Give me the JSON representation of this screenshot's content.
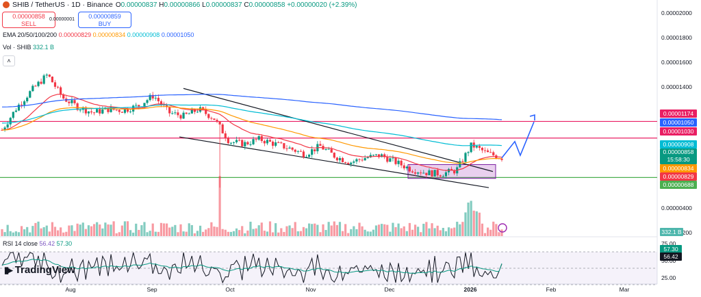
{
  "header": {
    "symbol": "SHIB / TetherUS · 1D · Binance",
    "o_label": "O",
    "o": "0.00000837",
    "h_label": "H",
    "h": "0.00000866",
    "l_label": "L",
    "l": "0.00000837",
    "c_label": "C",
    "c": "0.00000858",
    "change": "+0.00000020 (+2.39%)"
  },
  "trade": {
    "sell_price": "0.00000858",
    "sell_label": "SELL",
    "buy_price": "0.00000859",
    "buy_label": "BUY",
    "spread": "0.00000001"
  },
  "ema": {
    "label": "EMA 20/50/100/200",
    "v20": "0.00000829",
    "v50": "0.00000834",
    "v100": "0.00000908",
    "v200": "0.00001050"
  },
  "volume": {
    "label": "Vol · SHIB",
    "value": "332.1 B"
  },
  "rsi": {
    "label": "RSI 14 close",
    "value": "56.42",
    "ma": "57.30"
  },
  "logo": "TradingView",
  "colors": {
    "up": "#089981",
    "down": "#f23645",
    "ema20": "#f23645",
    "ema50": "#ff9800",
    "ema100": "#00bcd4",
    "ema200": "#2962ff",
    "resistance": "#e91e63",
    "support": "#4caf50",
    "projection": "#2962ff"
  },
  "price_axis": {
    "ticks": [
      "0.00002000",
      "0.00001800",
      "0.00001600",
      "0.00001400",
      "0.00001200",
      "0.00000400",
      "0.00000200"
    ],
    "labels": {
      "r1": "0.00001174",
      "ema200": "0.00001050",
      "r2": "0.00001030",
      "ema100": "0.00000908",
      "last": "0.00000858",
      "countdown": "15:58:30",
      "ema50": "0.00000834",
      "ema20": "0.00000829",
      "support": "0.00000688",
      "vol": "332.1 B"
    }
  },
  "rsi_axis": {
    "ticks": [
      "75.00",
      "25.00"
    ],
    "ma_label": "57.30",
    "value_label": "56.42",
    "mid_label": "50.00"
  },
  "time_axis": [
    "Aug",
    "Sep",
    "Oct",
    "Nov",
    "Dec",
    "2026",
    "Feb",
    "Mar"
  ],
  "chart_data": {
    "type": "candlestick",
    "title": "SHIB / TetherUS · 1D · Binance",
    "y_range": [
      1.8e-06,
      2.12e-05
    ],
    "x_labels": [
      "Aug",
      "Sep",
      "Oct",
      "Nov",
      "Dec",
      "2026",
      "Feb",
      "Mar"
    ],
    "ema20_current": 8.29e-06,
    "ema50_current": 8.34e-06,
    "ema100_current": 9.08e-06,
    "ema200_current": 1.05e-05,
    "horizontal_levels": [
      {
        "name": "resistance-1",
        "value": 1.174e-05
      },
      {
        "name": "resistance-2",
        "value": 1.03e-05
      },
      {
        "name": "support",
        "value": 6.88e-06
      }
    ],
    "channel": {
      "upper": [
        [
          1.46e-05,
          7.4e-06
        ]
      ],
      "lower": [
        [
          1.04e-05,
          6e-06
        ]
      ]
    },
    "accumulation_zone": [
      6.8e-06,
      8e-06
    ],
    "projection_path": [
      8.58e-06,
      1e-05,
      8.8e-06,
      1.17e-05
    ],
    "approx_close_path": [
      1.1e-05,
      1.3e-05,
      1.45e-05,
      1.58e-05,
      1.38e-05,
      1.3e-05,
      1.25e-05,
      1.28e-05,
      1.27e-05,
      1.31e-05,
      1.4e-05,
      1.25e-05,
      1.22e-05,
      1.28e-05,
      1.2e-05,
      1e-05,
      9.8e-06,
      1.02e-05,
      9.8e-06,
      9.4e-06,
      8.9e-06,
      9.6e-06,
      8.7e-06,
      8.2e-06,
      8.6e-06,
      8.8e-06,
      8.2e-06,
      7.6e-06,
      7.3e-06,
      7.2e-06,
      7.5e-06,
      9.7e-06,
      9e-06,
      8.6e-06
    ],
    "rsi": {
      "current": 56.42,
      "ma": 57.3,
      "overbought": 75,
      "oversold": 25
    },
    "volume_current": "332.1 B"
  }
}
